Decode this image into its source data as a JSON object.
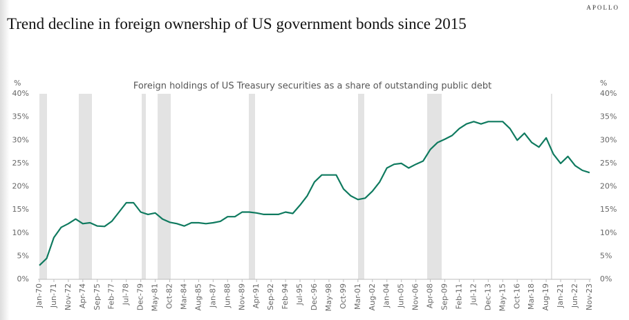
{
  "brand": "APOLLO",
  "chart_data": {
    "type": "line",
    "title": "Trend decline in foreign ownership of US government bonds since 2015",
    "subtitle": "Foreign holdings of US Treasury securities as a share of outstanding public debt",
    "ylabel": "%",
    "y2label": "%",
    "categories": [
      "Jan-70",
      null,
      "Jun-71",
      null,
      "Nov-72",
      null,
      "Apr-74",
      null,
      "Sep-75",
      null,
      "Feb-77",
      null,
      "Jul-78",
      null,
      "Dec-79",
      null,
      "May-81",
      null,
      "Oct-82",
      null,
      "Mar-84",
      null,
      "Aug-85",
      null,
      "Jan-87",
      null,
      "Jun-88",
      null,
      "Nov-89",
      null,
      "Apr-91",
      null,
      "Sep-92",
      null,
      "Feb-94",
      null,
      "Jul-95",
      null,
      "Dec-96",
      null,
      "May-98",
      null,
      "Oct-99",
      null,
      "Mar-01",
      null,
      "Aug-02",
      null,
      "Jan-04",
      null,
      "Jun-05",
      null,
      "Nov-06",
      null,
      "Apr-08",
      null,
      "Sep-09",
      null,
      "Feb-11",
      null,
      "Jul-12",
      null,
      "Dec-13",
      null,
      "May-15",
      null,
      "Oct-16",
      null,
      "Mar-18",
      null,
      "Aug-19",
      null,
      "Jan-21",
      null,
      "Jun-22",
      null,
      "Nov-23"
    ],
    "values": [
      3,
      4.5,
      9,
      11.2,
      12,
      13,
      12,
      12.2,
      11.5,
      11.4,
      12.5,
      14.5,
      16.5,
      16.5,
      14.5,
      14,
      14.3,
      13,
      12.3,
      12,
      11.5,
      12.2,
      12.2,
      12,
      12.2,
      12.5,
      13.5,
      13.5,
      14.5,
      14.5,
      14.3,
      14,
      14,
      14,
      14.5,
      14.2,
      16,
      18,
      21,
      22.5,
      22.5,
      22.5,
      19.5,
      18,
      17.2,
      17.5,
      19,
      21,
      24,
      24.8,
      25,
      24,
      24.8,
      25.5,
      28,
      29.5,
      30.2,
      31,
      32.5,
      33.5,
      34,
      33.5,
      34,
      34,
      34,
      32.5,
      30,
      31.5,
      29.5,
      28.5,
      30.5,
      27,
      25,
      26.5,
      24.5,
      23.5,
      23
    ],
    "color": "#0f7a5f",
    "ylim": [
      0,
      40
    ],
    "yticks": [
      {
        "value": 0,
        "label": "0%"
      },
      {
        "value": 5,
        "label": "5%"
      },
      {
        "value": 10,
        "label": "10%"
      },
      {
        "value": 15,
        "label": "15%"
      },
      {
        "value": 20,
        "label": "20%"
      },
      {
        "value": 25,
        "label": "25%"
      },
      {
        "value": 30,
        "label": "30%"
      },
      {
        "value": 35,
        "label": "35%"
      },
      {
        "value": 40,
        "label": "40%"
      }
    ],
    "y2lim": [
      0,
      40
    ],
    "y2ticks": [
      {
        "value": 0,
        "label": "0%"
      },
      {
        "value": 5,
        "label": "5%"
      },
      {
        "value": 10,
        "label": "10%"
      },
      {
        "value": 15,
        "label": "15%"
      },
      {
        "value": 20,
        "label": "20%"
      },
      {
        "value": 25,
        "label": "25%"
      },
      {
        "value": 30,
        "label": "30%"
      },
      {
        "value": 35,
        "label": "35%"
      },
      {
        "value": 40,
        "label": "40%"
      }
    ]
  }
}
